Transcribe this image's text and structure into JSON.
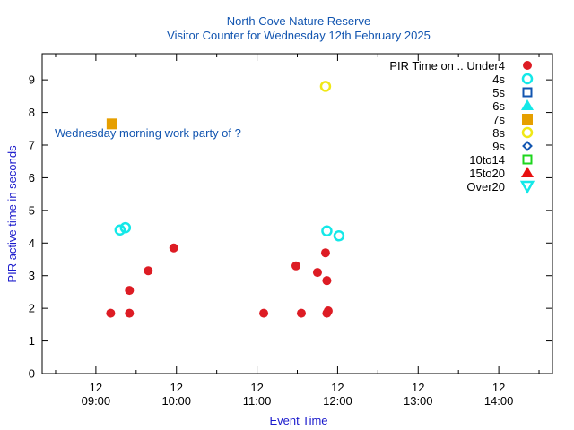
{
  "chart_data": {
    "type": "scatter",
    "title": "North Cove Nature Reserve",
    "subtitle": "Visitor Counter for Wednesday 12th February 2025",
    "xlabel": "Event Time",
    "ylabel": "PIR active time in seconds",
    "annotation": "Wednesday morning work party of ?",
    "legend_title": "PIR Time on ..",
    "legend_position": "top-right",
    "grid": false,
    "xlim": [
      "08:20",
      "14:40"
    ],
    "ylim": [
      0,
      9.8
    ],
    "yticks": [
      0,
      1,
      2,
      3,
      4,
      5,
      6,
      7,
      8,
      9
    ],
    "xticks": [
      {
        "day": "12",
        "time": "09:00"
      },
      {
        "day": "12",
        "time": "10:00"
      },
      {
        "day": "12",
        "time": "11:00"
      },
      {
        "day": "12",
        "time": "12:00"
      },
      {
        "day": "12",
        "time": "13:00"
      },
      {
        "day": "12",
        "time": "14:00"
      }
    ],
    "xminor": [
      "08:30",
      "09:30",
      "10:30",
      "11:30",
      "12:30",
      "13:30",
      "14:30"
    ],
    "series": [
      {
        "name": "Under4",
        "marker": "circle-filled",
        "color": "#dd1c24",
        "points": [
          {
            "x": "09:11",
            "y": 1.85
          },
          {
            "x": "09:25",
            "y": 1.85
          },
          {
            "x": "09:25",
            "y": 2.55
          },
          {
            "x": "09:39",
            "y": 3.15
          },
          {
            "x": "09:58",
            "y": 3.85
          },
          {
            "x": "11:05",
            "y": 1.85
          },
          {
            "x": "11:29",
            "y": 3.3
          },
          {
            "x": "11:33",
            "y": 1.85
          },
          {
            "x": "11:45",
            "y": 3.1
          },
          {
            "x": "11:51",
            "y": 3.7
          },
          {
            "x": "11:52",
            "y": 2.85
          },
          {
            "x": "11:52",
            "y": 1.85
          },
          {
            "x": "11:53",
            "y": 1.92
          }
        ]
      },
      {
        "name": "4s",
        "marker": "circle-open",
        "color": "#14e8e8",
        "points": [
          {
            "x": "09:18",
            "y": 4.4
          },
          {
            "x": "09:22",
            "y": 4.47
          },
          {
            "x": "11:52",
            "y": 4.37
          },
          {
            "x": "12:01",
            "y": 4.22
          }
        ]
      },
      {
        "name": "5s",
        "marker": "square-open",
        "color": "#1255b0",
        "points": []
      },
      {
        "name": "6s",
        "marker": "triangle-up-filled",
        "color": "#14e8e8",
        "points": []
      },
      {
        "name": "7s",
        "marker": "square-filled",
        "color": "#e69f00",
        "points": [
          {
            "x": "09:12",
            "y": 7.65
          }
        ]
      },
      {
        "name": "8s",
        "marker": "circle-open",
        "color": "#f0e816",
        "points": [
          {
            "x": "11:51",
            "y": 8.8
          }
        ]
      },
      {
        "name": "9s",
        "marker": "diamond-open",
        "color": "#1255b0",
        "points": []
      },
      {
        "name": "10to14",
        "marker": "square-open",
        "color": "#1ed61e",
        "points": []
      },
      {
        "name": "15to20",
        "marker": "triangle-up-filled",
        "color": "#e81010",
        "points": []
      },
      {
        "name": "Over20",
        "marker": "triangle-down-open",
        "color": "#14e8e8",
        "points": []
      }
    ],
    "colors": {
      "title": "#1255b0",
      "axis_label": "#1a1acc",
      "axes": "#000000"
    }
  }
}
